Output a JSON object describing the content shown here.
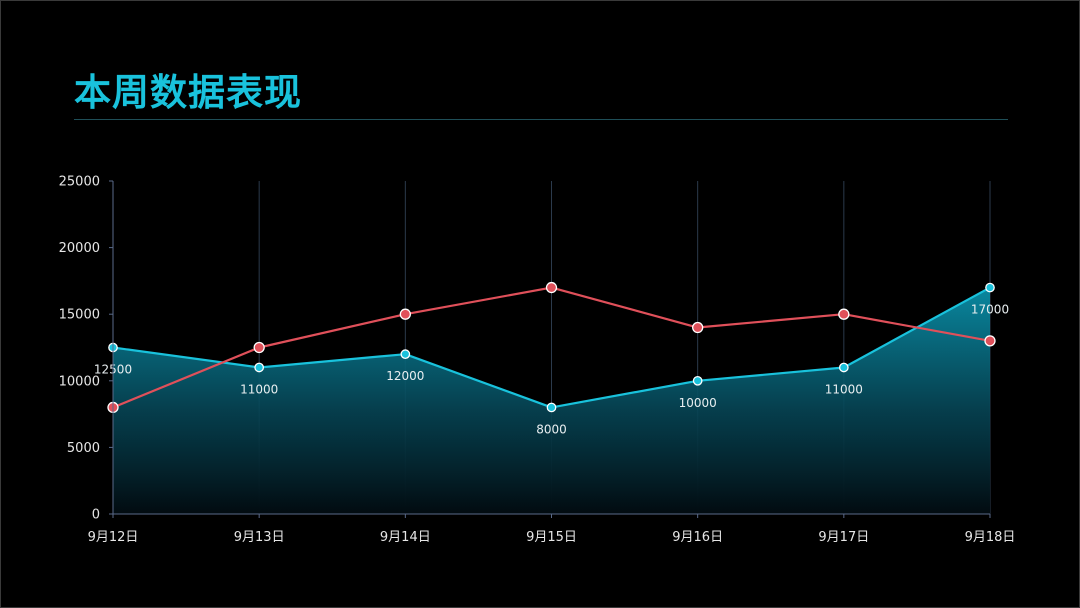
{
  "title": "本周数据表现",
  "colors": {
    "accent": "#19c2dc",
    "series_cyan": "#19c2dc",
    "series_red": "#e0505a",
    "background": "#000000",
    "grid": "#2b3a4c"
  },
  "chart_data": {
    "type": "area",
    "categories": [
      "9月12日",
      "9月13日",
      "9月14日",
      "9月15日",
      "9月16日",
      "9月17日",
      "9月18日"
    ],
    "ylim": [
      0,
      25000
    ],
    "yticks": [
      0,
      5000,
      10000,
      15000,
      20000,
      25000
    ],
    "grid": "vertical",
    "series": [
      {
        "type": "area",
        "color": "#19c2dc",
        "values": [
          12500,
          11000,
          12000,
          8000,
          10000,
          11000,
          17000
        ],
        "data_labels": [
          "12500",
          "11000",
          "12000",
          "8000",
          "10000",
          "11000",
          "17000"
        ]
      },
      {
        "type": "line",
        "color": "#e0505a",
        "values": [
          8000,
          12500,
          15000,
          17000,
          14000,
          15000,
          13000
        ]
      }
    ]
  }
}
